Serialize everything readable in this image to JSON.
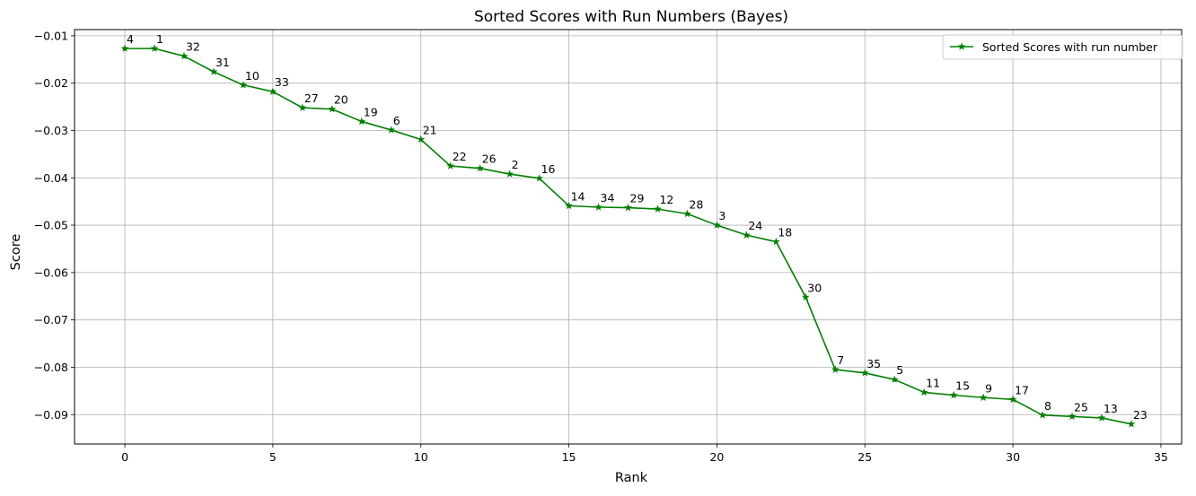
{
  "chart_data": {
    "type": "line",
    "title": "Sorted Scores with Run Numbers (Bayes)",
    "xlabel": "Rank",
    "ylabel": "Score",
    "xlim": [
      -1.7,
      35.7
    ],
    "ylim": [
      -0.0962,
      -0.0087
    ],
    "xticks": [
      0,
      5,
      10,
      15,
      20,
      25,
      30,
      35
    ],
    "xtick_labels": [
      "0",
      "5",
      "10",
      "15",
      "20",
      "25",
      "30",
      "35"
    ],
    "yticks": [
      -0.01,
      -0.02,
      -0.03,
      -0.04,
      -0.05,
      -0.06,
      -0.07,
      -0.08,
      -0.09
    ],
    "ytick_labels": [
      "−0.01",
      "−0.02",
      "−0.03",
      "−0.04",
      "−0.05",
      "−0.06",
      "−0.07",
      "−0.08",
      "−0.09"
    ],
    "grid": true,
    "legend": {
      "position": "top-right"
    },
    "series": [
      {
        "name": "Sorted Scores with run number",
        "color": "#008000",
        "marker": "star",
        "x": [
          0,
          1,
          2,
          3,
          4,
          5,
          6,
          7,
          8,
          9,
          10,
          11,
          12,
          13,
          14,
          15,
          16,
          17,
          18,
          19,
          20,
          21,
          22,
          23,
          24,
          25,
          26,
          27,
          28,
          29,
          30,
          31,
          32,
          33,
          34
        ],
        "y": [
          -0.0127,
          -0.0127,
          -0.0143,
          -0.0176,
          -0.0204,
          -0.0218,
          -0.0252,
          -0.0255,
          -0.0281,
          -0.0299,
          -0.0319,
          -0.0375,
          -0.038,
          -0.0392,
          -0.0401,
          -0.0459,
          -0.0462,
          -0.0463,
          -0.0466,
          -0.0476,
          -0.05,
          -0.0521,
          -0.0535,
          -0.0652,
          -0.0805,
          -0.0812,
          -0.0826,
          -0.0853,
          -0.0859,
          -0.0864,
          -0.0868,
          -0.0901,
          -0.0904,
          -0.0907,
          -0.092
        ],
        "labels": [
          "4",
          "1",
          "32",
          "31",
          "10",
          "33",
          "27",
          "20",
          "19",
          "6",
          "21",
          "22",
          "26",
          "2",
          "16",
          "14",
          "34",
          "29",
          "12",
          "28",
          "3",
          "24",
          "18",
          "30",
          "7",
          "35",
          "5",
          "11",
          "15",
          "9",
          "17",
          "8",
          "25",
          "13",
          "23"
        ]
      }
    ]
  }
}
